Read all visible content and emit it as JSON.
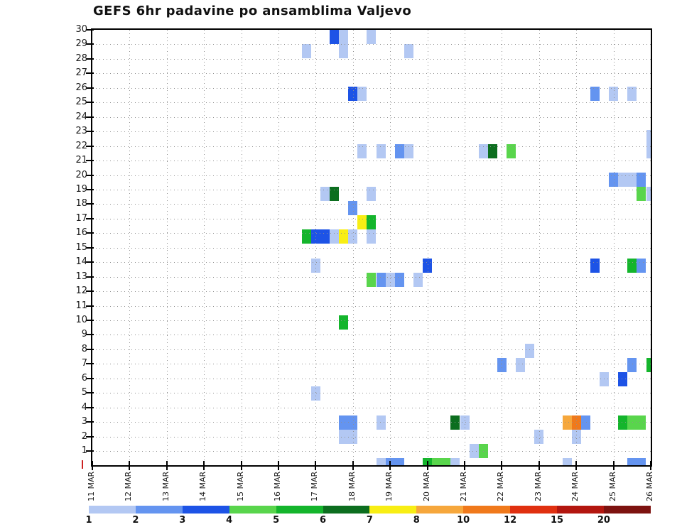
{
  "title": "GEFS 6hr padavine po ansamblima Valjevo",
  "chart_data": {
    "type": "heatmap",
    "title": "GEFS 6hr padavine po ansamblima Valjevo",
    "x_axis": {
      "tick_labels": [
        "11 MAR",
        "12 MAR",
        "13 MAR",
        "14 MAR",
        "15 MAR",
        "16 MAR",
        "17 MAR",
        "18 MAR",
        "19 MAR",
        "20 MAR",
        "21 MAR",
        "22 MAR",
        "23 MAR",
        "24 MAR",
        "25 MAR",
        "26 MAR"
      ],
      "steps_per_day": 4,
      "step_hours": 6
    },
    "y_axis": {
      "tick_labels": [
        "1",
        "2",
        "3",
        "4",
        "5",
        "6",
        "7",
        "8",
        "9",
        "10",
        "11",
        "12",
        "13",
        "14",
        "15",
        "16",
        "17",
        "18",
        "19",
        "20",
        "21",
        "22",
        "23",
        "24",
        "25",
        "26",
        "27",
        "28",
        "29",
        "30"
      ],
      "description": "ensemble member"
    },
    "grid": "dotted",
    "legend": {
      "position": "bottom",
      "bin_labels": [
        "1",
        "2",
        "3",
        "4",
        "5",
        "6",
        "7",
        "8",
        "10",
        "12",
        "15",
        "20"
      ],
      "bin_colors": [
        "#b3c8f3",
        "#6494f0",
        "#1d53e6",
        "#59d54c",
        "#14b52c",
        "#0c6e1f",
        "#f8ee14",
        "#f6a73c",
        "#f0791b",
        "#e03010",
        "#b3160f",
        "#7d1210"
      ]
    },
    "value_color_map": {
      "1": "#b3c8f3",
      "2": "#6494f0",
      "3": "#1d53e6",
      "4": "#59d54c",
      "5": "#14b52c",
      "6": "#0c6e1f",
      "7": "#f8ee14",
      "8": "#f6a73c",
      "10": "#f0791b",
      "12": "#e03010",
      "15": "#b3160f",
      "20": "#7d1210"
    },
    "cell_format": [
      "member_row",
      "time_step_6h_from_11MAR00",
      "value_bin_mm"
    ],
    "cells": [
      [
        30,
        26,
        3
      ],
      [
        30,
        27,
        1
      ],
      [
        30,
        30,
        1
      ],
      [
        29,
        23,
        1
      ],
      [
        29,
        27,
        1
      ],
      [
        29,
        34,
        1
      ],
      [
        26,
        28,
        3
      ],
      [
        26,
        29,
        1
      ],
      [
        26,
        54,
        2
      ],
      [
        26,
        56,
        1
      ],
      [
        26,
        58,
        1
      ],
      [
        23,
        60,
        1
      ],
      [
        22,
        29,
        1
      ],
      [
        22,
        31,
        1
      ],
      [
        22,
        33,
        2
      ],
      [
        22,
        34,
        1
      ],
      [
        22,
        42,
        1
      ],
      [
        22,
        43,
        6
      ],
      [
        22,
        45,
        4
      ],
      [
        22,
        60,
        1
      ],
      [
        20,
        56,
        2
      ],
      [
        20,
        57,
        1
      ],
      [
        20,
        58,
        1
      ],
      [
        20,
        59,
        2
      ],
      [
        19,
        25,
        1
      ],
      [
        19,
        26,
        6
      ],
      [
        19,
        30,
        1
      ],
      [
        19,
        59,
        4
      ],
      [
        19,
        60,
        1
      ],
      [
        18,
        28,
        2
      ],
      [
        17,
        29,
        7
      ],
      [
        17,
        30,
        5
      ],
      [
        16,
        23,
        5
      ],
      [
        16,
        24,
        3
      ],
      [
        16,
        25,
        3
      ],
      [
        16,
        26,
        1
      ],
      [
        16,
        27,
        7
      ],
      [
        16,
        28,
        1
      ],
      [
        16,
        30,
        1
      ],
      [
        14,
        24,
        1
      ],
      [
        14,
        36,
        3
      ],
      [
        14,
        54,
        3
      ],
      [
        14,
        58,
        5
      ],
      [
        14,
        59,
        2
      ],
      [
        13,
        30,
        4
      ],
      [
        13,
        31,
        2
      ],
      [
        13,
        32,
        1
      ],
      [
        13,
        33,
        2
      ],
      [
        13,
        35,
        1
      ],
      [
        10,
        27,
        5
      ],
      [
        8,
        47,
        1
      ],
      [
        7,
        44,
        2
      ],
      [
        7,
        46,
        1
      ],
      [
        7,
        58,
        2
      ],
      [
        7,
        60,
        5
      ],
      [
        6,
        55,
        1
      ],
      [
        6,
        57,
        3
      ],
      [
        5,
        24,
        1
      ],
      [
        3,
        27,
        2
      ],
      [
        3,
        28,
        2
      ],
      [
        3,
        31,
        1
      ],
      [
        3,
        39,
        6
      ],
      [
        3,
        40,
        1
      ],
      [
        3,
        51,
        8
      ],
      [
        3,
        52,
        10
      ],
      [
        3,
        53,
        2
      ],
      [
        3,
        57,
        5
      ],
      [
        3,
        58,
        4
      ],
      [
        3,
        59,
        4
      ],
      [
        2,
        27,
        1
      ],
      [
        2,
        28,
        1
      ],
      [
        2,
        48,
        1
      ],
      [
        2,
        52,
        1
      ],
      [
        1,
        41,
        1
      ],
      [
        1,
        42,
        4
      ],
      [
        0,
        31,
        1
      ],
      [
        0,
        32,
        2
      ],
      [
        0,
        33,
        2
      ],
      [
        0,
        36,
        5
      ],
      [
        0,
        37,
        4
      ],
      [
        0,
        38,
        4
      ],
      [
        0,
        39,
        1
      ],
      [
        0,
        51,
        1
      ],
      [
        0,
        58,
        2
      ],
      [
        0,
        59,
        2
      ]
    ]
  },
  "colors": {
    "frame": "#000000",
    "grid_dot": "#909090",
    "origin_marker": "#cc2222",
    "background": "#ffffff"
  }
}
